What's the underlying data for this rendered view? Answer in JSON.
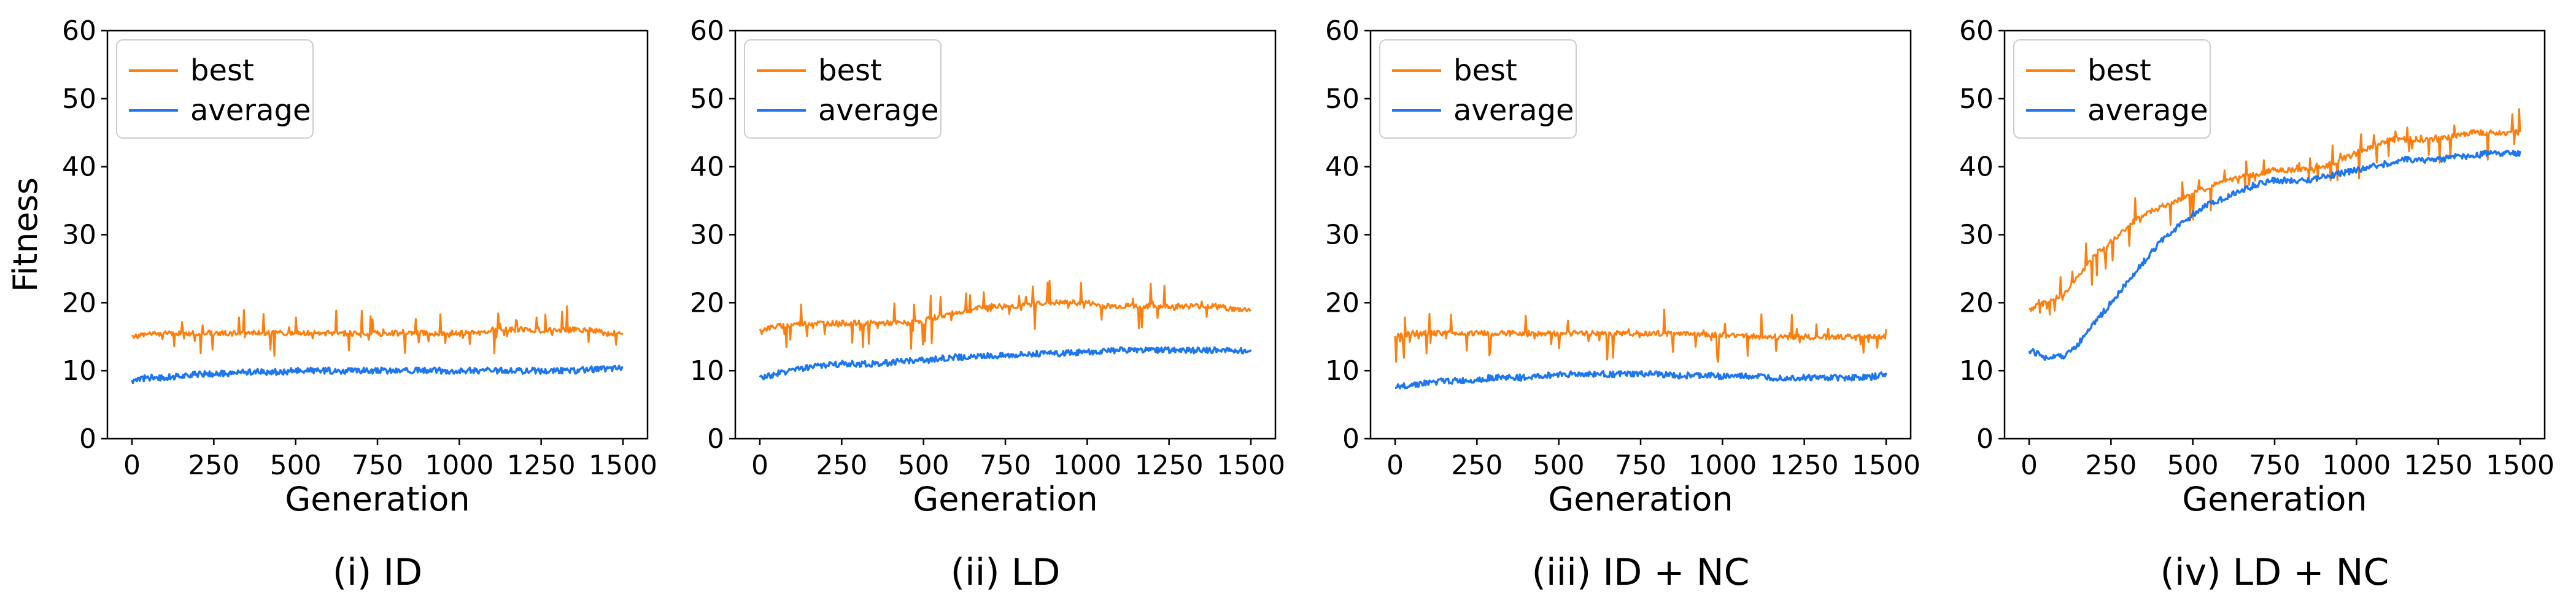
{
  "chart_data": [
    {
      "type": "line",
      "caption": "(i) ID",
      "xlabel": "Generation",
      "ylabel": "Fitness",
      "xlim": [
        -75,
        1575
      ],
      "ylim": [
        0,
        60
      ],
      "xticks": [
        0,
        250,
        500,
        750,
        1000,
        1250,
        1500
      ],
      "xtick_labels": [
        "0",
        "250",
        "500",
        "750",
        "1000",
        "1250",
        "1500"
      ],
      "yticks": [
        0,
        10,
        20,
        30,
        40,
        50,
        60
      ],
      "legend": [
        "best",
        "average"
      ],
      "series": [
        {
          "name": "best",
          "color": "#ff7f0e",
          "x": [
            0,
            50,
            100,
            150,
            200,
            250,
            300,
            350,
            400,
            450,
            500,
            550,
            600,
            650,
            700,
            750,
            800,
            850,
            900,
            950,
            1000,
            1050,
            1100,
            1150,
            1200,
            1250,
            1300,
            1350,
            1400,
            1450,
            1500
          ],
          "values": [
            15,
            15.5,
            15.5,
            15.5,
            15.5,
            15.5,
            15.5,
            15.5,
            15.5,
            15.5,
            15.5,
            15.5,
            15.5,
            15.5,
            15.5,
            15.5,
            15.5,
            15.5,
            15.5,
            15.5,
            15.5,
            15.5,
            16,
            16,
            16,
            16,
            16,
            16,
            16,
            15.5,
            15.5
          ]
        },
        {
          "name": "average",
          "color": "#1f77f0",
          "x": [
            0,
            50,
            100,
            150,
            200,
            250,
            300,
            350,
            400,
            450,
            500,
            550,
            600,
            650,
            700,
            750,
            800,
            850,
            900,
            950,
            1000,
            1050,
            1100,
            1150,
            1200,
            1250,
            1300,
            1350,
            1400,
            1450,
            1500
          ],
          "values": [
            8.5,
            9,
            9,
            9.2,
            9.5,
            9.5,
            9.6,
            9.8,
            9.8,
            9.8,
            10,
            10,
            10,
            10,
            10,
            10,
            10,
            10,
            10,
            10,
            10,
            10,
            10,
            10,
            10,
            10,
            10,
            10,
            10.2,
            10.3,
            10.5
          ]
        }
      ]
    },
    {
      "type": "line",
      "caption": "(ii) LD",
      "xlabel": "Generation",
      "ylabel": "",
      "xlim": [
        -75,
        1575
      ],
      "ylim": [
        0,
        60
      ],
      "xticks": [
        0,
        250,
        500,
        750,
        1000,
        1250,
        1500
      ],
      "xtick_labels": [
        "0",
        "250",
        "500",
        "750",
        "1000",
        "1250",
        "1500"
      ],
      "yticks": [
        0,
        10,
        20,
        30,
        40,
        50,
        60
      ],
      "legend": [
        "best",
        "average"
      ],
      "series": [
        {
          "name": "best",
          "color": "#ff7f0e",
          "x": [
            0,
            50,
            100,
            150,
            200,
            250,
            300,
            350,
            400,
            450,
            500,
            550,
            600,
            650,
            700,
            750,
            800,
            850,
            900,
            950,
            1000,
            1050,
            1100,
            1150,
            1200,
            1250,
            1300,
            1350,
            1400,
            1450,
            1500
          ],
          "values": [
            16,
            16.5,
            16.8,
            17,
            17,
            17,
            17,
            17,
            17,
            17,
            17.5,
            18,
            18.5,
            19,
            19.5,
            19.5,
            19.5,
            20,
            20,
            20,
            20,
            19.5,
            19.5,
            19.5,
            19.5,
            19.5,
            19.5,
            19.5,
            19.5,
            19,
            19
          ]
        },
        {
          "name": "average",
          "color": "#1f77f0",
          "x": [
            0,
            50,
            100,
            150,
            200,
            250,
            300,
            350,
            400,
            450,
            500,
            550,
            600,
            650,
            700,
            750,
            800,
            850,
            900,
            950,
            1000,
            1050,
            1100,
            1150,
            1200,
            1250,
            1300,
            1350,
            1400,
            1450,
            1500
          ],
          "values": [
            9,
            9.5,
            10,
            10.5,
            10.8,
            11,
            11,
            11,
            11.2,
            11.5,
            11.5,
            11.8,
            12,
            12,
            12.2,
            12.3,
            12.5,
            12.5,
            12.5,
            12.6,
            12.8,
            12.8,
            13,
            13,
            13,
            13,
            13,
            13,
            13,
            13,
            13
          ]
        }
      ]
    },
    {
      "type": "line",
      "caption": "(iii) ID + NC",
      "xlabel": "Generation",
      "ylabel": "",
      "xlim": [
        -75,
        1575
      ],
      "ylim": [
        0,
        60
      ],
      "xticks": [
        0,
        250,
        500,
        750,
        1000,
        1250,
        1500
      ],
      "xtick_labels": [
        "0",
        "250",
        "500",
        "750",
        "1000",
        "1250",
        "1500"
      ],
      "yticks": [
        0,
        10,
        20,
        30,
        40,
        50,
        60
      ],
      "legend": [
        "best",
        "average"
      ],
      "series": [
        {
          "name": "best",
          "color": "#ff7f0e",
          "x": [
            0,
            50,
            100,
            150,
            200,
            250,
            300,
            350,
            400,
            450,
            500,
            550,
            600,
            650,
            700,
            750,
            800,
            850,
            900,
            950,
            1000,
            1050,
            1100,
            1150,
            1200,
            1250,
            1300,
            1350,
            1400,
            1450,
            1500
          ],
          "values": [
            15,
            15.5,
            15.5,
            15.5,
            15.5,
            15.5,
            15.5,
            15.5,
            15.5,
            15.5,
            15.5,
            15.5,
            15.5,
            15.5,
            15.5,
            15.5,
            15.5,
            15.5,
            15.3,
            15.3,
            15.2,
            15.2,
            15,
            15,
            15,
            15,
            15,
            15,
            15,
            15,
            15
          ]
        },
        {
          "name": "average",
          "color": "#1f77f0",
          "x": [
            0,
            50,
            100,
            150,
            200,
            250,
            300,
            350,
            400,
            450,
            500,
            550,
            600,
            650,
            700,
            750,
            800,
            850,
            900,
            950,
            1000,
            1050,
            1100,
            1150,
            1200,
            1250,
            1300,
            1350,
            1400,
            1450,
            1500
          ],
          "values": [
            7.5,
            8,
            8.2,
            8.5,
            8.5,
            8.7,
            9,
            9,
            9,
            9.2,
            9.5,
            9.5,
            9.5,
            9.5,
            9.5,
            9.5,
            9.5,
            9.3,
            9.3,
            9.3,
            9.2,
            9.2,
            9.2,
            9,
            9,
            9,
            9,
            9,
            9,
            9,
            9.5
          ]
        }
      ]
    },
    {
      "type": "line",
      "caption": "(iv) LD + NC",
      "xlabel": "Generation",
      "ylabel": "",
      "xlim": [
        -75,
        1575
      ],
      "ylim": [
        0,
        60
      ],
      "xticks": [
        0,
        250,
        500,
        750,
        1000,
        1250,
        1500
      ],
      "xtick_labels": [
        "0",
        "250",
        "500",
        "750",
        "1000",
        "1250",
        "1500"
      ],
      "yticks": [
        0,
        10,
        20,
        30,
        40,
        50,
        60
      ],
      "legend": [
        "best",
        "average"
      ],
      "series": [
        {
          "name": "best",
          "color": "#ff7f0e",
          "x": [
            0,
            50,
            100,
            150,
            200,
            250,
            300,
            350,
            400,
            450,
            500,
            550,
            600,
            650,
            700,
            750,
            800,
            850,
            900,
            950,
            1000,
            1050,
            1100,
            1150,
            1200,
            1250,
            1300,
            1350,
            1400,
            1450,
            1500
          ],
          "values": [
            19,
            20,
            21,
            24,
            27,
            29,
            31,
            33,
            34,
            35,
            36,
            37,
            38,
            38.5,
            39,
            39.5,
            39.5,
            39.5,
            40,
            41,
            42,
            43,
            44,
            44,
            44,
            44,
            44.5,
            45,
            45,
            45,
            45
          ]
        },
        {
          "name": "average",
          "color": "#1f77f0",
          "x": [
            0,
            50,
            100,
            150,
            200,
            250,
            300,
            350,
            400,
            450,
            500,
            550,
            600,
            650,
            700,
            750,
            800,
            850,
            900,
            950,
            1000,
            1050,
            1100,
            1150,
            1200,
            1250,
            1300,
            1350,
            1400,
            1450,
            1500
          ],
          "values": [
            13,
            12,
            12,
            14,
            17,
            20,
            23,
            26,
            29,
            31,
            33,
            34.5,
            35.5,
            36.5,
            37.5,
            38,
            38,
            38,
            38.5,
            39,
            39.5,
            40,
            40.5,
            41,
            41,
            41,
            41.5,
            41.5,
            42,
            42,
            42
          ]
        }
      ]
    }
  ]
}
